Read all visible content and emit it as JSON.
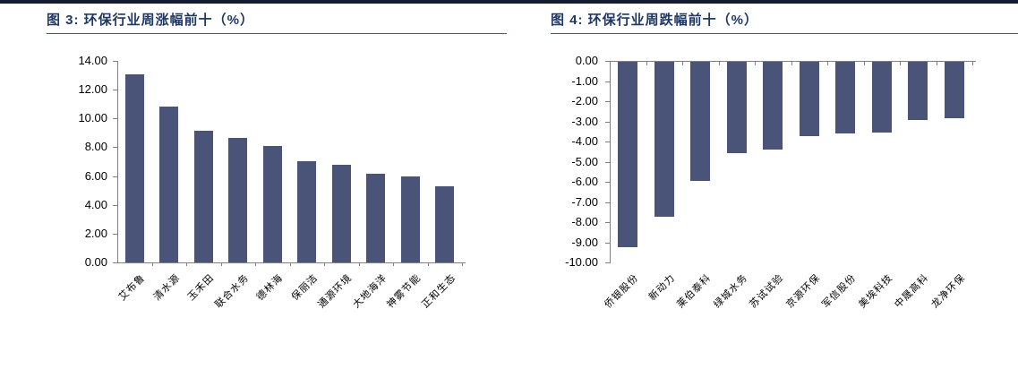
{
  "page": {
    "background": "#ffffff",
    "top_rule_color": "#131C33",
    "title_color": "#1F3864",
    "title_rule_color": "#2A4476"
  },
  "figures": [
    {
      "title": "图 3: 环保行业周涨幅前十（%）"
    },
    {
      "title": "图 4: 环保行业周跌幅前十（%）"
    }
  ],
  "chart_data": [
    {
      "type": "bar",
      "title": "图 3: 环保行业周涨幅前十（%）",
      "categories": [
        "艾布鲁",
        "清水源",
        "玉禾田",
        "联合水务",
        "德林海",
        "保丽洁",
        "通源环境",
        "大地海洋",
        "神雾节能",
        "正和生态"
      ],
      "values": [
        13.1,
        10.85,
        9.15,
        8.65,
        8.1,
        7.05,
        6.8,
        6.15,
        6.0,
        5.3
      ],
      "xlabel": "",
      "ylabel": "",
      "ylim": [
        0,
        14
      ],
      "ytick_step": 2,
      "yticks": [
        "14.00",
        "12.00",
        "10.00",
        "8.00",
        "6.00",
        "4.00",
        "2.00",
        "0.00"
      ],
      "direction": "up",
      "grid": false,
      "legend": "none",
      "bar_color": "#4A5478",
      "axis_color": "#808080",
      "label_color": "#000000"
    },
    {
      "type": "bar",
      "title": "图 4: 环保行业周跌幅前十（%）",
      "categories": [
        "侨银股份",
        "新动力",
        "莱伯泰科",
        "绿城水务",
        "苏试试验",
        "京源环保",
        "军信股份",
        "美埃科技",
        "中晟高科",
        "龙净环保"
      ],
      "values": [
        -9.2,
        -7.7,
        -5.9,
        -4.55,
        -4.35,
        -3.7,
        -3.55,
        -3.5,
        -2.9,
        -2.8
      ],
      "xlabel": "",
      "ylabel": "",
      "ylim": [
        -10,
        0
      ],
      "ytick_step": -1,
      "yticks": [
        "0.00",
        "-1.00",
        "-2.00",
        "-3.00",
        "-4.00",
        "-5.00",
        "-6.00",
        "-7.00",
        "-8.00",
        "-9.00",
        "-10.00"
      ],
      "direction": "down",
      "grid": false,
      "legend": "none",
      "bar_color": "#4A5478",
      "axis_color": "#808080",
      "label_color": "#000000"
    }
  ]
}
